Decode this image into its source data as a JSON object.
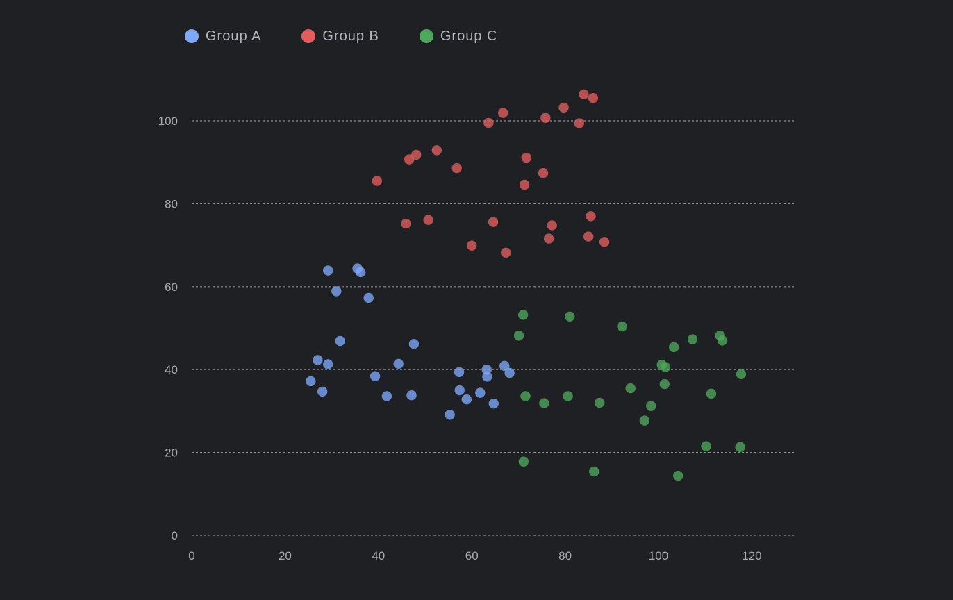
{
  "chart_data": {
    "type": "scatter",
    "title": "",
    "xlabel": "",
    "ylabel": "",
    "xlim": [
      0,
      130
    ],
    "ylim": [
      0,
      110
    ],
    "x_ticks": [
      0,
      20,
      40,
      60,
      80,
      100,
      120
    ],
    "y_ticks": [
      0,
      20,
      40,
      60,
      80,
      100
    ],
    "grid": "horizontal-dashed",
    "legend_position": "top-left",
    "series": [
      {
        "name": "Group A",
        "color": "#7ea8f8",
        "points": [
          {
            "x": 25.5,
            "y": 37.2
          },
          {
            "x": 27.0,
            "y": 42.3
          },
          {
            "x": 28.0,
            "y": 34.7
          },
          {
            "x": 29.2,
            "y": 41.3
          },
          {
            "x": 29.2,
            "y": 63.9
          },
          {
            "x": 31.0,
            "y": 58.9
          },
          {
            "x": 31.8,
            "y": 46.9
          },
          {
            "x": 35.5,
            "y": 64.4
          },
          {
            "x": 36.2,
            "y": 63.5
          },
          {
            "x": 37.9,
            "y": 57.3
          },
          {
            "x": 39.3,
            "y": 38.4
          },
          {
            "x": 41.8,
            "y": 33.6
          },
          {
            "x": 44.3,
            "y": 41.4
          },
          {
            "x": 47.1,
            "y": 33.8
          },
          {
            "x": 47.6,
            "y": 46.2
          },
          {
            "x": 55.3,
            "y": 29.1
          },
          {
            "x": 57.3,
            "y": 39.4
          },
          {
            "x": 57.4,
            "y": 35.0
          },
          {
            "x": 58.9,
            "y": 32.8
          },
          {
            "x": 61.8,
            "y": 34.4
          },
          {
            "x": 63.2,
            "y": 40.0
          },
          {
            "x": 63.3,
            "y": 38.3
          },
          {
            "x": 64.7,
            "y": 31.8
          },
          {
            "x": 67.0,
            "y": 40.9
          },
          {
            "x": 68.1,
            "y": 39.2
          }
        ]
      },
      {
        "name": "Group B",
        "color": "#e35d5d",
        "points": [
          {
            "x": 39.7,
            "y": 85.5
          },
          {
            "x": 45.9,
            "y": 75.2
          },
          {
            "x": 46.6,
            "y": 90.7
          },
          {
            "x": 48.1,
            "y": 91.8
          },
          {
            "x": 50.7,
            "y": 76.1
          },
          {
            "x": 52.5,
            "y": 92.9
          },
          {
            "x": 56.8,
            "y": 88.6
          },
          {
            "x": 60.0,
            "y": 69.9
          },
          {
            "x": 63.6,
            "y": 99.5
          },
          {
            "x": 64.6,
            "y": 75.6
          },
          {
            "x": 66.7,
            "y": 101.9
          },
          {
            "x": 67.3,
            "y": 68.2
          },
          {
            "x": 71.3,
            "y": 84.6
          },
          {
            "x": 71.7,
            "y": 91.1
          },
          {
            "x": 75.3,
            "y": 87.4
          },
          {
            "x": 75.8,
            "y": 100.7
          },
          {
            "x": 76.5,
            "y": 71.6
          },
          {
            "x": 77.2,
            "y": 74.8
          },
          {
            "x": 79.7,
            "y": 103.2
          },
          {
            "x": 83.0,
            "y": 99.4
          },
          {
            "x": 84.0,
            "y": 106.4
          },
          {
            "x": 85.0,
            "y": 72.1
          },
          {
            "x": 85.5,
            "y": 77.0
          },
          {
            "x": 86.0,
            "y": 105.5
          },
          {
            "x": 88.4,
            "y": 70.8
          }
        ]
      },
      {
        "name": "Group C",
        "color": "#4fa85c",
        "points": [
          {
            "x": 70.1,
            "y": 48.2
          },
          {
            "x": 71.0,
            "y": 53.2
          },
          {
            "x": 71.1,
            "y": 17.8
          },
          {
            "x": 71.5,
            "y": 33.6
          },
          {
            "x": 75.5,
            "y": 31.9
          },
          {
            "x": 80.6,
            "y": 33.6
          },
          {
            "x": 81.0,
            "y": 52.8
          },
          {
            "x": 86.2,
            "y": 15.4
          },
          {
            "x": 87.4,
            "y": 32.0
          },
          {
            "x": 92.2,
            "y": 50.4
          },
          {
            "x": 94.0,
            "y": 35.5
          },
          {
            "x": 97.0,
            "y": 27.7
          },
          {
            "x": 98.4,
            "y": 31.2
          },
          {
            "x": 100.7,
            "y": 41.2
          },
          {
            "x": 101.3,
            "y": 36.5
          },
          {
            "x": 101.5,
            "y": 40.6
          },
          {
            "x": 103.3,
            "y": 45.4
          },
          {
            "x": 104.2,
            "y": 14.4
          },
          {
            "x": 107.3,
            "y": 47.3
          },
          {
            "x": 110.2,
            "y": 21.5
          },
          {
            "x": 111.3,
            "y": 34.2
          },
          {
            "x": 113.2,
            "y": 48.2
          },
          {
            "x": 113.7,
            "y": 47.0
          },
          {
            "x": 117.5,
            "y": 21.3
          },
          {
            "x": 117.7,
            "y": 38.9
          }
        ]
      }
    ]
  }
}
